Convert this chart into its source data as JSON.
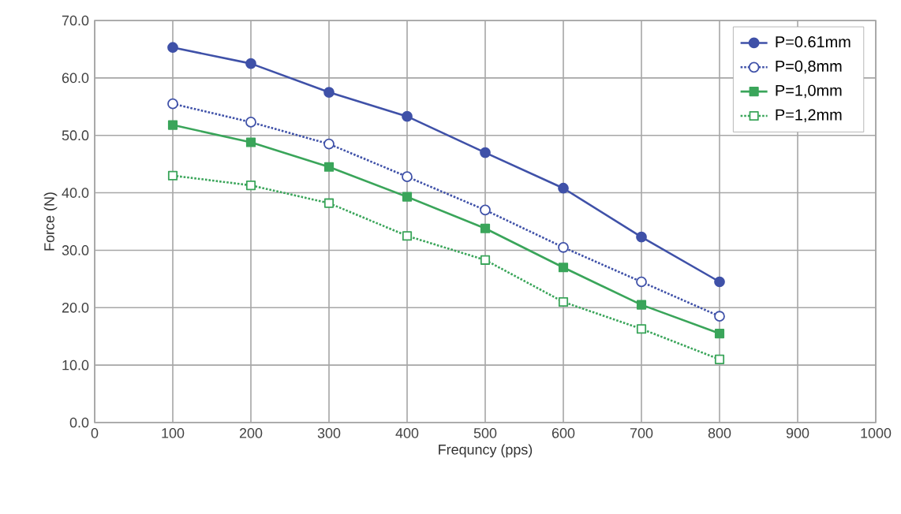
{
  "chart_data": {
    "type": "line",
    "xlabel": "Frequncy (pps)",
    "ylabel": "Force (N)",
    "x": [
      100,
      200,
      300,
      400,
      500,
      600,
      700,
      800
    ],
    "series": [
      {
        "name": "P=0.61mm",
        "color": "#3f51a8",
        "marker": "circle",
        "line_style": "solid",
        "values": [
          65.3,
          62.5,
          57.5,
          53.3,
          47.0,
          40.8,
          32.3,
          24.5
        ]
      },
      {
        "name": "P=0,8mm",
        "color": "#3f51a8",
        "marker": "circle",
        "line_style": "dotted",
        "values": [
          55.5,
          52.3,
          48.5,
          42.8,
          37.0,
          30.5,
          24.5,
          18.5
        ]
      },
      {
        "name": "P=1,0mm",
        "color": "#3aa55a",
        "marker": "square",
        "line_style": "solid",
        "values": [
          51.8,
          48.8,
          44.5,
          39.3,
          33.8,
          27.0,
          20.5,
          15.5
        ]
      },
      {
        "name": "P=1,2mm",
        "color": "#3aa55a",
        "marker": "square",
        "line_style": "dotted",
        "values": [
          43.0,
          41.3,
          38.2,
          32.5,
          28.3,
          21.0,
          16.3,
          11.0
        ]
      }
    ],
    "xlim": [
      0,
      1000
    ],
    "xticks": [
      0,
      100,
      200,
      300,
      400,
      500,
      600,
      700,
      800,
      900,
      1000
    ],
    "ylim": [
      0,
      70
    ],
    "yticks": [
      {
        "value": 0,
        "label": "0.0"
      },
      {
        "value": 10,
        "label": "10.0"
      },
      {
        "value": 20,
        "label": "20.0"
      },
      {
        "value": 30,
        "label": "30.0"
      },
      {
        "value": 40,
        "label": "40.0"
      },
      {
        "value": 50,
        "label": "50.0"
      },
      {
        "value": 60,
        "label": "60.0"
      },
      {
        "value": 70,
        "label": "70.0"
      }
    ],
    "grid": true,
    "legend": "top right"
  }
}
